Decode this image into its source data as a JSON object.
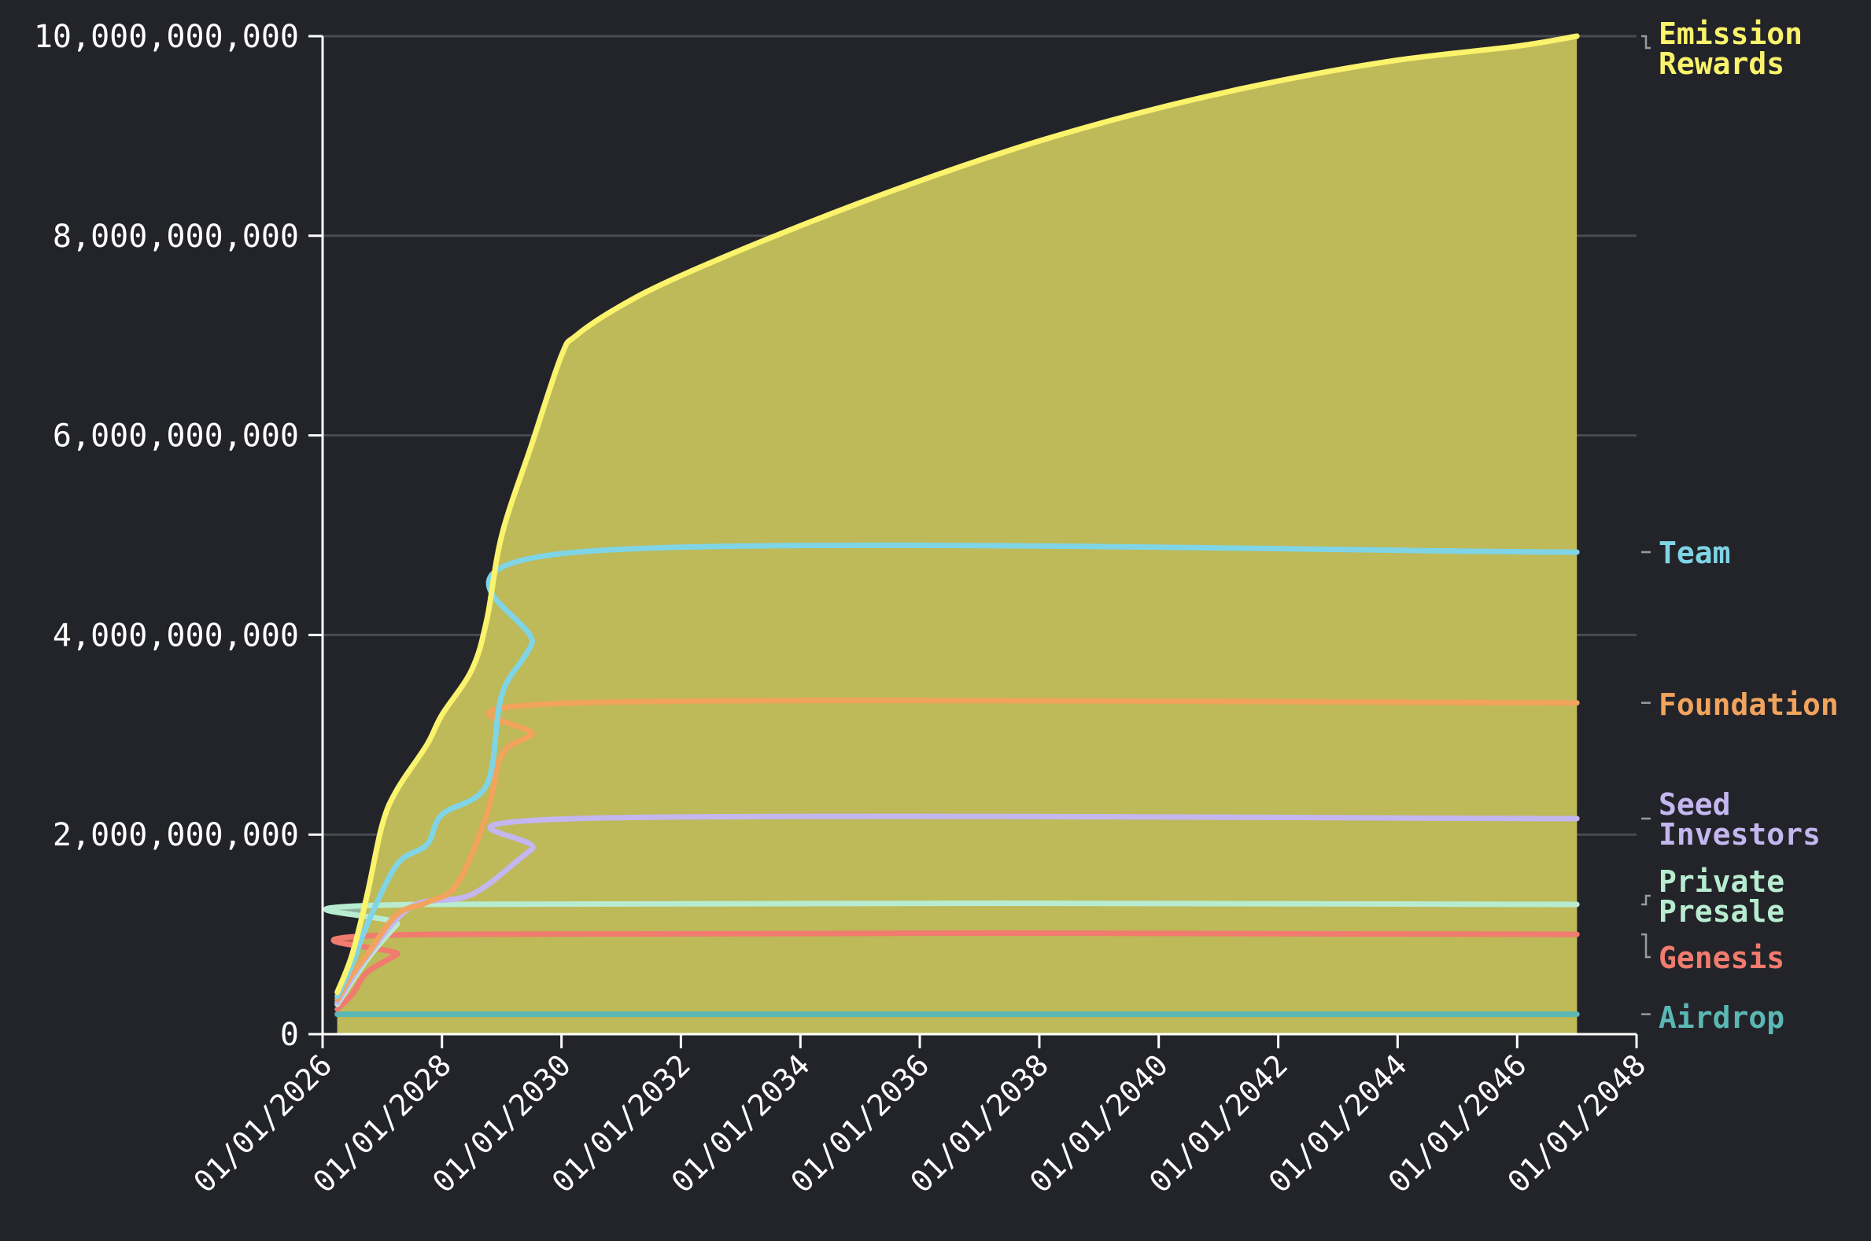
{
  "chart_data": {
    "type": "area",
    "stacked": true,
    "x_axis": {
      "type": "date",
      "min": "2026-01-01",
      "max": "2048-01-01",
      "ticks": [
        "2026-01-01",
        "2028-01-01",
        "2030-01-01",
        "2032-01-01",
        "2034-01-01",
        "2036-01-01",
        "2038-01-01",
        "2040-01-01",
        "2042-01-01",
        "2044-01-01",
        "2046-01-01",
        "2048-01-01"
      ],
      "tick_labels": [
        "01/01/2026",
        "01/01/2028",
        "01/01/2030",
        "01/01/2032",
        "01/01/2034",
        "01/01/2036",
        "01/01/2038",
        "01/01/2040",
        "01/01/2042",
        "01/01/2044",
        "01/01/2046",
        "01/01/2048"
      ]
    },
    "y_axis": {
      "min": 0,
      "max": 10000000000,
      "ticks": [
        0,
        2000000000,
        4000000000,
        6000000000,
        8000000000,
        10000000000
      ],
      "tick_labels": [
        "0",
        "2,000,000,000",
        "4,000,000,000",
        "6,000,000,000",
        "8,000,000,000",
        "10,000,000,000"
      ]
    },
    "grid": "horizontal",
    "legend": "right-end labels",
    "series": [
      {
        "name": "Airdrop",
        "label_lines": [
          "Airdrop"
        ],
        "color": "#5ab7b4",
        "points": [
          [
            "2026-04-01",
            200000000
          ],
          [
            "2047-01-01",
            200000000
          ]
        ]
      },
      {
        "name": "Genesis",
        "label_lines": [
          "Genesis"
        ],
        "color": "#f07b6e",
        "points": [
          [
            "2026-04-01",
            250000000
          ],
          [
            "2026-07-01",
            400000000
          ],
          [
            "2026-10-01",
            620000000
          ],
          [
            "2027-04-01",
            800000000
          ],
          [
            "2027-10-01",
            1000000000
          ],
          [
            "2047-01-01",
            1000000000
          ]
        ]
      },
      {
        "name": "Private Presale",
        "label_lines": [
          "Private",
          "Presale"
        ],
        "color": "#b8ecd0",
        "points": [
          [
            "2026-04-01",
            300000000
          ],
          [
            "2026-10-01",
            750000000
          ],
          [
            "2027-04-01",
            1100000000
          ],
          [
            "2027-08-01",
            1300000000
          ],
          [
            "2047-01-01",
            1300000000
          ]
        ]
      },
      {
        "name": "Seed Investors",
        "label_lines": [
          "Seed",
          "Investors"
        ],
        "color": "#c4b6ef",
        "points": [
          [
            "2026-04-01",
            320000000
          ],
          [
            "2026-10-01",
            780000000
          ],
          [
            "2027-07-01",
            1280000000
          ],
          [
            "2028-07-01",
            1400000000
          ],
          [
            "2029-07-01",
            1850000000
          ],
          [
            "2030-04-01",
            2160000000
          ],
          [
            "2047-01-01",
            2160000000
          ]
        ]
      },
      {
        "name": "Foundation",
        "label_lines": [
          "Foundation"
        ],
        "color": "#f2a35e",
        "points": [
          [
            "2026-04-01",
            350000000
          ],
          [
            "2026-07-01",
            600000000
          ],
          [
            "2026-10-01",
            800000000
          ],
          [
            "2027-04-01",
            1200000000
          ],
          [
            "2027-10-01",
            1320000000
          ],
          [
            "2028-04-01",
            1500000000
          ],
          [
            "2028-10-01",
            2200000000
          ],
          [
            "2029-01-01",
            2800000000
          ],
          [
            "2029-07-01",
            3000000000
          ],
          [
            "2030-04-01",
            3320000000
          ],
          [
            "2047-01-01",
            3320000000
          ]
        ]
      },
      {
        "name": "Team",
        "label_lines": [
          "Team"
        ],
        "color": "#7fd4e6",
        "points": [
          [
            "2026-04-01",
            380000000
          ],
          [
            "2026-07-01",
            700000000
          ],
          [
            "2026-10-01",
            1100000000
          ],
          [
            "2027-04-01",
            1700000000
          ],
          [
            "2027-10-01",
            1900000000
          ],
          [
            "2028-01-01",
            2200000000
          ],
          [
            "2028-10-01",
            2500000000
          ],
          [
            "2029-01-01",
            3400000000
          ],
          [
            "2029-07-01",
            3900000000
          ],
          [
            "2030-04-01",
            4830000000
          ],
          [
            "2047-01-01",
            4830000000
          ]
        ]
      },
      {
        "name": "Emission Rewards",
        "label_lines": [
          "Emission",
          "Rewards"
        ],
        "color": "#faf36b",
        "points": [
          [
            "2026-04-01",
            420000000
          ],
          [
            "2026-07-01",
            800000000
          ],
          [
            "2026-10-01",
            1400000000
          ],
          [
            "2027-01-01",
            2100000000
          ],
          [
            "2027-04-01",
            2450000000
          ],
          [
            "2027-10-01",
            2900000000
          ],
          [
            "2028-01-01",
            3200000000
          ],
          [
            "2028-07-01",
            3650000000
          ],
          [
            "2028-10-01",
            4150000000
          ],
          [
            "2029-01-01",
            5000000000
          ],
          [
            "2029-07-01",
            5900000000
          ],
          [
            "2030-01-01",
            6800000000
          ],
          [
            "2030-04-01",
            7000000000
          ],
          [
            "2031-01-01",
            7300000000
          ],
          [
            "2032-01-01",
            7600000000
          ],
          [
            "2034-01-01",
            8100000000
          ],
          [
            "2036-01-01",
            8550000000
          ],
          [
            "2038-01-01",
            8950000000
          ],
          [
            "2040-01-01",
            9280000000
          ],
          [
            "2042-01-01",
            9550000000
          ],
          [
            "2044-01-01",
            9760000000
          ],
          [
            "2046-01-01",
            9900000000
          ],
          [
            "2047-01-01",
            10000000000
          ]
        ]
      }
    ]
  }
}
